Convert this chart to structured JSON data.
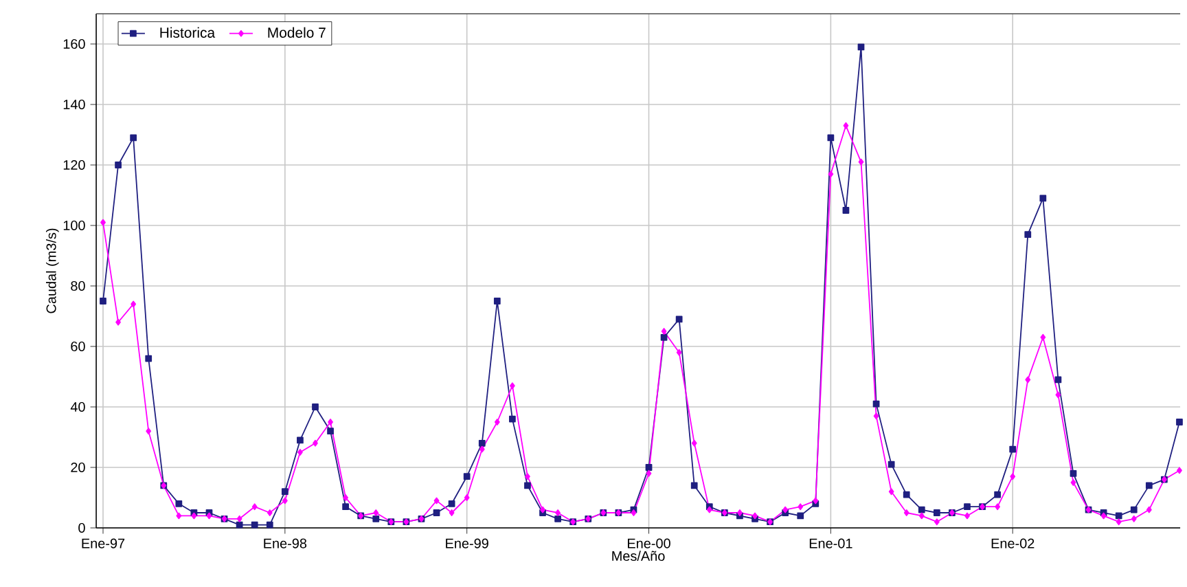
{
  "chart_data": {
    "type": "line",
    "xlabel": "Mes/Año",
    "ylabel": "Caudal (m3/s)",
    "categories": [
      "Ene-97",
      null,
      null,
      null,
      null,
      null,
      null,
      null,
      null,
      null,
      null,
      null,
      "Ene-98",
      null,
      null,
      null,
      null,
      null,
      null,
      null,
      null,
      null,
      null,
      null,
      "Ene-99",
      null,
      null,
      null,
      null,
      null,
      null,
      null,
      null,
      null,
      null,
      null,
      "Ene-00",
      null,
      null,
      null,
      null,
      null,
      null,
      null,
      null,
      null,
      null,
      null,
      "Ene-01",
      null,
      null,
      null,
      null,
      null,
      null,
      null,
      null,
      null,
      null,
      null,
      "Ene-02",
      null,
      null,
      null,
      null,
      null,
      null,
      null,
      null,
      null,
      null,
      null
    ],
    "series": [
      {
        "name": "Historica",
        "color": "#1f1f80",
        "marker": "square",
        "values": [
          75,
          120,
          129,
          56,
          14,
          8,
          5,
          5,
          3,
          1,
          1,
          1,
          12,
          29,
          40,
          32,
          7,
          4,
          3,
          2,
          2,
          3,
          5,
          8,
          17,
          28,
          75,
          36,
          14,
          5,
          3,
          2,
          3,
          5,
          5,
          6,
          20,
          63,
          69,
          14,
          7,
          5,
          4,
          3,
          2,
          5,
          4,
          8,
          129,
          105,
          159,
          41,
          21,
          11,
          6,
          5,
          5,
          7,
          7,
          11,
          26,
          97,
          109,
          49,
          18,
          6,
          5,
          4,
          6,
          14,
          16,
          35
        ]
      },
      {
        "name": "Modelo 7",
        "color": "#ff00ff",
        "marker": "diamond",
        "values": [
          101,
          68,
          74,
          32,
          14,
          4,
          4,
          4,
          3,
          3,
          7,
          5,
          9,
          25,
          28,
          35,
          10,
          4,
          5,
          2,
          2,
          3,
          9,
          5,
          10,
          26,
          35,
          47,
          17,
          6,
          5,
          2,
          3,
          5,
          5,
          5,
          18,
          65,
          58,
          28,
          6,
          5,
          5,
          4,
          2,
          6,
          7,
          9,
          117,
          133,
          121,
          37,
          12,
          5,
          4,
          2,
          5,
          4,
          7,
          7,
          17,
          49,
          63,
          44,
          15,
          6,
          4,
          2,
          3,
          6,
          16,
          19
        ]
      }
    ],
    "ylim": [
      0,
      170
    ],
    "yticks": [
      0,
      20,
      40,
      60,
      80,
      100,
      120,
      140,
      160
    ],
    "grid": true,
    "legend": "top left",
    "line_style": "solid"
  }
}
